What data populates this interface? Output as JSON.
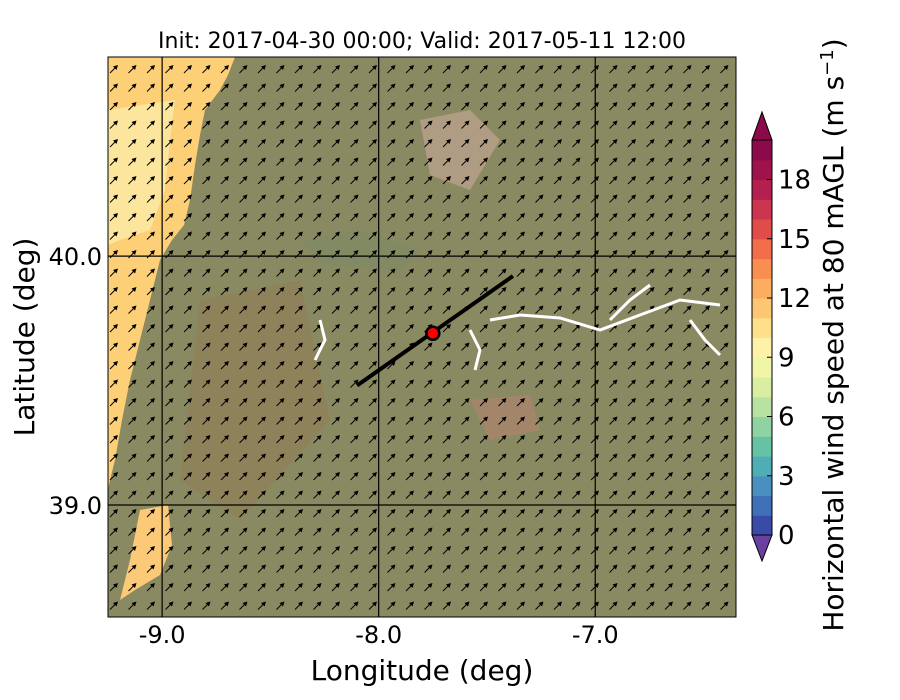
{
  "title": "Init: 2017-04-30 00:00; Valid: 2017-05-11 12:00",
  "xlabel": "Longitude (deg)",
  "ylabel": "Latitude (deg)",
  "colorbar_label": "Horizontal wind speed at 80 mAGL (m s",
  "colorbar_label_sup": "−1",
  "colorbar_label_end": ")",
  "x_ticks": [
    {
      "value": -9.0,
      "label": "-9.0"
    },
    {
      "value": -8.0,
      "label": "-8.0"
    },
    {
      "value": -7.0,
      "label": "-7.0"
    }
  ],
  "y_ticks": [
    {
      "value": 40.0,
      "label": "40.0"
    },
    {
      "value": 39.0,
      "label": "39.0"
    }
  ],
  "xlim": [
    -9.25,
    -6.35
  ],
  "ylim": [
    38.55,
    40.8
  ],
  "colorbar": {
    "range": [
      0,
      20
    ],
    "step": 1,
    "tick_labels": [
      "0",
      "3",
      "6",
      "9",
      "12",
      "15",
      "18"
    ],
    "tick_values": [
      0,
      3,
      6,
      9,
      12,
      15,
      18
    ],
    "extend": "both",
    "colors": [
      "#3a4aa8",
      "#3f6fb6",
      "#4a8fbf",
      "#4faeb5",
      "#66c2a4",
      "#8ed3a1",
      "#b7e2a2",
      "#d9eea0",
      "#f0f5a8",
      "#fdf2a8",
      "#fee08b",
      "#fdc673",
      "#fdad5f",
      "#f98e52",
      "#f26d4a",
      "#e04c4a",
      "#cc3550",
      "#b51f4f",
      "#a0124c",
      "#8c0a4a"
    ]
  },
  "wind_arrow_direction": "northeast",
  "transect": {
    "start": [
      -8.1,
      39.48
    ],
    "end": [
      -7.38,
      39.92
    ]
  },
  "site_marker": {
    "lon": -7.75,
    "lat": 39.69,
    "color": "#ff0000"
  }
}
